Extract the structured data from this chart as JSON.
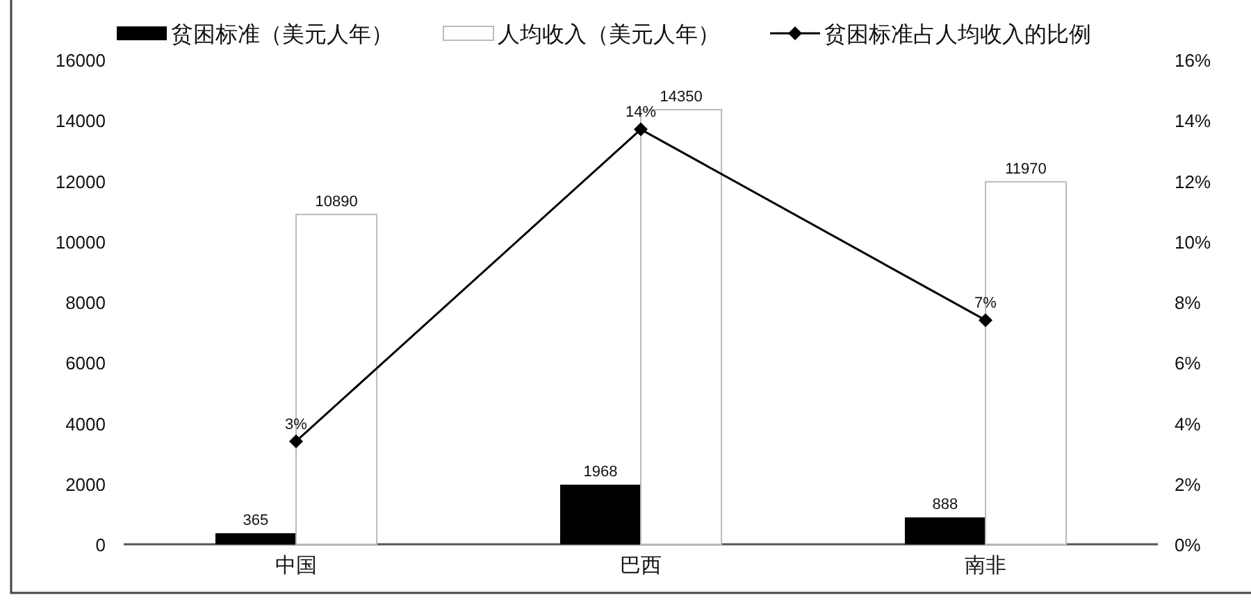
{
  "chart_data": {
    "type": "bar",
    "categories": [
      "中国",
      "巴西",
      "南非"
    ],
    "series": [
      {
        "name": "贫困标准（美元人年）",
        "color": "#000000",
        "values": [
          365,
          1968,
          888
        ]
      },
      {
        "name": "人均收入（美元人年）",
        "color": "#ffffff",
        "values": [
          10890,
          14350,
          11970
        ]
      },
      {
        "name": "贫困标准占人均收入的比例",
        "type": "line",
        "axis": "y2",
        "color": "#000000",
        "marker": "diamond",
        "values": [
          3.4,
          13.7,
          7.4
        ],
        "value_labels": [
          "3%",
          "14%",
          "7%"
        ]
      }
    ],
    "ylim": [
      0,
      16000
    ],
    "yticks": [
      0,
      2000,
      4000,
      6000,
      8000,
      10000,
      12000,
      14000,
      16000
    ],
    "y2lim": [
      0,
      16
    ],
    "y2ticks": [
      {
        "value": 0,
        "label": "0%"
      },
      {
        "value": 2,
        "label": "2%"
      },
      {
        "value": 4,
        "label": "4%"
      },
      {
        "value": 6,
        "label": "6%"
      },
      {
        "value": 8,
        "label": "8%"
      },
      {
        "value": 10,
        "label": "10%"
      },
      {
        "value": 12,
        "label": "12%"
      },
      {
        "value": 14,
        "label": "14%"
      },
      {
        "value": 16,
        "label": "16%"
      }
    ],
    "data_labels": true,
    "legend": "top"
  }
}
